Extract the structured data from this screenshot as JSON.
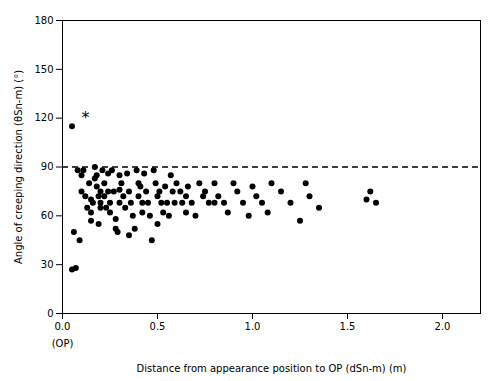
{
  "chart_data": {
    "type": "scatter",
    "x": [
      0.05,
      0.05,
      0.07,
      0.08,
      0.1,
      0.1,
      0.11,
      0.12,
      0.13,
      0.14,
      0.15,
      0.15,
      0.15,
      0.16,
      0.17,
      0.17,
      0.18,
      0.18,
      0.19,
      0.2,
      0.2,
      0.2,
      0.21,
      0.22,
      0.22,
      0.23,
      0.24,
      0.24,
      0.25,
      0.25,
      0.26,
      0.27,
      0.28,
      0.28,
      0.3,
      0.3,
      0.3,
      0.31,
      0.32,
      0.33,
      0.34,
      0.35,
      0.36,
      0.37,
      0.38,
      0.39,
      0.4,
      0.4,
      0.41,
      0.42,
      0.42,
      0.43,
      0.44,
      0.45,
      0.46,
      0.47,
      0.48,
      0.49,
      0.5,
      0.51,
      0.52,
      0.53,
      0.54,
      0.55,
      0.56,
      0.57,
      0.58,
      0.59,
      0.6,
      0.62,
      0.63,
      0.65,
      0.66,
      0.68,
      0.7,
      0.72,
      0.74,
      0.75,
      0.77,
      0.8,
      0.82,
      0.85,
      0.87,
      0.9,
      0.92,
      0.95,
      0.98,
      1.0,
      1.02,
      1.05,
      1.08,
      1.1,
      1.15,
      1.2,
      1.25,
      1.28,
      1.3,
      1.35,
      1.6,
      1.62,
      1.65,
      0.06,
      0.09,
      0.19,
      0.29,
      0.35,
      0.5,
      0.65,
      0.8
    ],
    "values": [
      115,
      27,
      28,
      88,
      85,
      75,
      88,
      72,
      65,
      80,
      70,
      62,
      57,
      68,
      90,
      83,
      85,
      78,
      72,
      65,
      75,
      68,
      88,
      80,
      72,
      65,
      86,
      75,
      68,
      62,
      88,
      75,
      58,
      52,
      85,
      76,
      68,
      80,
      72,
      65,
      86,
      75,
      68,
      60,
      52,
      88,
      80,
      72,
      78,
      68,
      62,
      86,
      75,
      68,
      60,
      45,
      88,
      80,
      72,
      75,
      68,
      62,
      78,
      68,
      60,
      85,
      75,
      68,
      80,
      75,
      68,
      62,
      78,
      68,
      60,
      80,
      72,
      75,
      68,
      80,
      72,
      68,
      62,
      80,
      75,
      68,
      60,
      78,
      72,
      68,
      62,
      80,
      75,
      68,
      57,
      80,
      72,
      65,
      70,
      75,
      68,
      50,
      45,
      55,
      50,
      48,
      55,
      72,
      68
    ],
    "color": "#000000",
    "marker": "circle",
    "xlabel": "Distance from appearance position to OP (dSn-m) (m)",
    "ylabel": "Angle of creeping direction (θSn-m) (°)",
    "xlim": [
      0,
      2.2
    ],
    "ylim": [
      0,
      180
    ],
    "xticks": [
      {
        "value": 0,
        "label": "0.0"
      },
      {
        "value": 0.5,
        "label": "0.5"
      },
      {
        "value": 1.0,
        "label": "1.0"
      },
      {
        "value": 1.5,
        "label": "1.5"
      },
      {
        "value": 2.0,
        "label": "2.0"
      }
    ],
    "yticks": [
      0,
      30,
      60,
      90,
      120,
      150,
      180
    ],
    "reference_line": {
      "y": 90,
      "color": "black",
      "line_style": "dashed"
    },
    "annotations": [
      {
        "text": "*",
        "x": 0.1,
        "y": 117
      }
    ],
    "axis_notes": [
      {
        "text": "(OP)",
        "x": 0
      }
    ],
    "grid": false
  }
}
